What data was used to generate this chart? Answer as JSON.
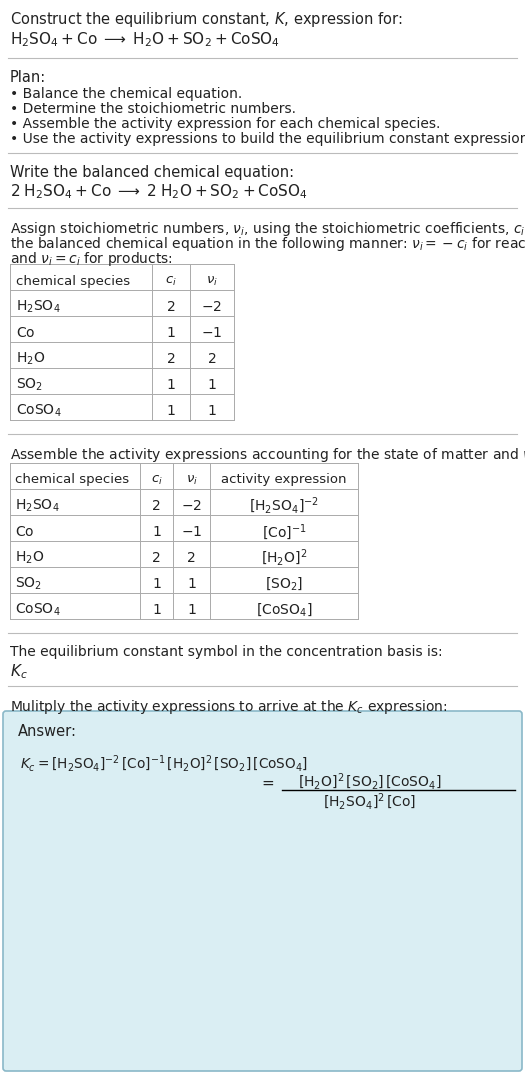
{
  "bg_color": "#ffffff",
  "answer_bg": "#daeef3",
  "answer_border": "#8ab8c8",
  "title_line1": "Construct the equilibrium constant, $K$, expression for:",
  "title_line2": "$\\mathrm{H_2SO_4 + Co \\;\\longrightarrow\\; H_2O + SO_2 + CoSO_4}$",
  "plan_header": "Plan:",
  "plan_bullets": [
    "• Balance the chemical equation.",
    "• Determine the stoichiometric numbers.",
    "• Assemble the activity expression for each chemical species.",
    "• Use the activity expressions to build the equilibrium constant expression."
  ],
  "balanced_header": "Write the balanced chemical equation:",
  "balanced_eq": "$\\mathrm{2\\;H_2SO_4 + Co \\;\\longrightarrow\\; 2\\;H_2O + SO_2 + CoSO_4}$",
  "stoich_intro1": "Assign stoichiometric numbers, $\\nu_i$, using the stoichiometric coefficients, $c_i$, from",
  "stoich_intro2": "the balanced chemical equation in the following manner: $\\nu_i = -c_i$ for reactants",
  "stoich_intro3": "and $\\nu_i = c_i$ for products:",
  "table1_headers": [
    "chemical species",
    "$c_i$",
    "$\\nu_i$"
  ],
  "table1_rows": [
    [
      "$\\mathrm{H_2SO_4}$",
      "2",
      "$-2$"
    ],
    [
      "$\\mathrm{Co}$",
      "1",
      "$-1$"
    ],
    [
      "$\\mathrm{H_2O}$",
      "2",
      "2"
    ],
    [
      "$\\mathrm{SO_2}$",
      "1",
      "1"
    ],
    [
      "$\\mathrm{CoSO_4}$",
      "1",
      "1"
    ]
  ],
  "activity_intro": "Assemble the activity expressions accounting for the state of matter and $\\nu_i$:",
  "table2_headers": [
    "chemical species",
    "$c_i$",
    "$\\nu_i$",
    "activity expression"
  ],
  "table2_rows": [
    [
      "$\\mathrm{H_2SO_4}$",
      "2",
      "$-2$",
      "$[\\mathrm{H_2SO_4}]^{-2}$"
    ],
    [
      "$\\mathrm{Co}$",
      "1",
      "$-1$",
      "$[\\mathrm{Co}]^{-1}$"
    ],
    [
      "$\\mathrm{H_2O}$",
      "2",
      "2",
      "$[\\mathrm{H_2O}]^{2}$"
    ],
    [
      "$\\mathrm{SO_2}$",
      "1",
      "1",
      "$[\\mathrm{SO_2}]$"
    ],
    [
      "$\\mathrm{CoSO_4}$",
      "1",
      "1",
      "$[\\mathrm{CoSO_4}]$"
    ]
  ],
  "kc_intro": "The equilibrium constant symbol in the concentration basis is:",
  "kc_symbol": "$K_c$",
  "multiply_intro": "Mulitply the activity expressions to arrive at the $K_c$ expression:",
  "answer_label": "Answer:",
  "kc_lhs": "$K_c = [\\mathrm{H_2SO_4}]^{-2}\\,[\\mathrm{Co}]^{-1}\\,[\\mathrm{H_2O}]^{2}\\,[\\mathrm{SO_2}]\\,[\\mathrm{CoSO_4}]$",
  "kc_fraction_num": "$[\\mathrm{H_2O}]^2\\,[\\mathrm{SO_2}]\\,[\\mathrm{CoSO_4}]$",
  "kc_fraction_den": "$[\\mathrm{H_2SO_4}]^2\\,[\\mathrm{Co}]$"
}
